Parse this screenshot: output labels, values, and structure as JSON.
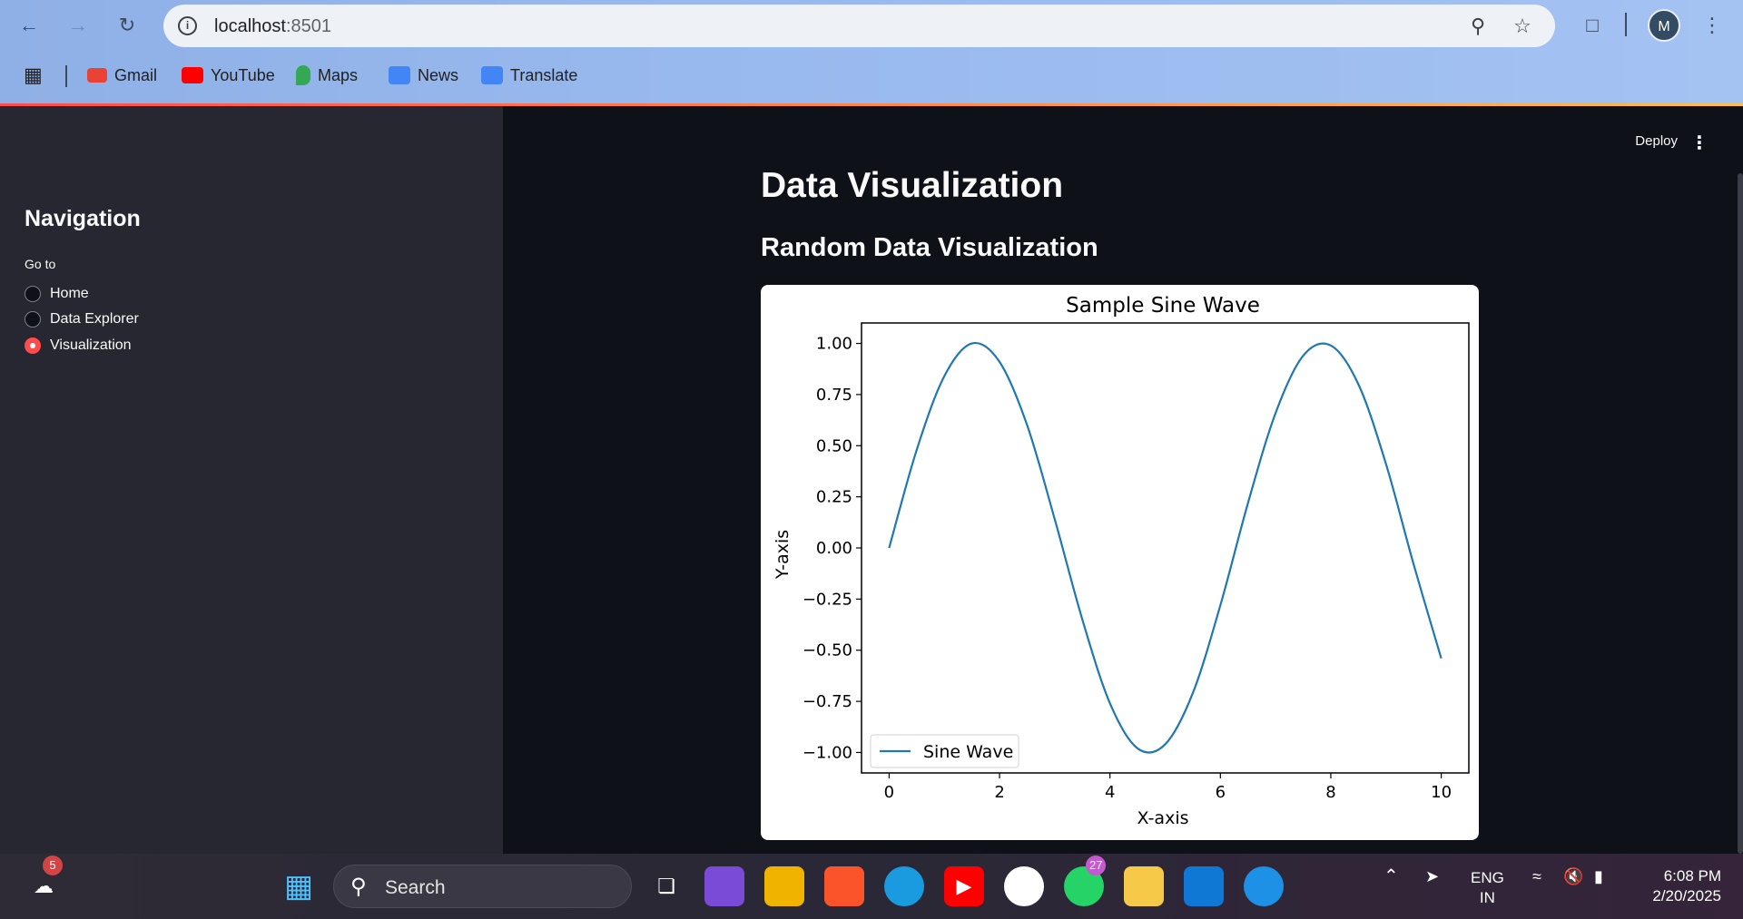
{
  "browser": {
    "url_host": "localhost",
    "url_port": ":8501",
    "profile_initial": "M",
    "bookmarks": [
      {
        "label": "Gmail",
        "color": "#ea4335"
      },
      {
        "label": "YouTube",
        "color": "#ff0000"
      },
      {
        "label": "Maps",
        "color": "#34a853"
      },
      {
        "label": "News",
        "color": "#4285f4"
      },
      {
        "label": "Translate",
        "color": "#4285f4"
      }
    ]
  },
  "sidebar": {
    "heading": "Navigation",
    "radio_label": "Go to",
    "options": [
      "Home",
      "Data Explorer",
      "Visualization"
    ],
    "selected": "Visualization"
  },
  "main": {
    "deploy_label": "Deploy",
    "title": "Data Visualization",
    "subtitle": "Random Data Visualization"
  },
  "chart_data": {
    "type": "line",
    "title": "Sample Sine Wave",
    "xlabel": "X-axis",
    "ylabel": "Y-axis",
    "xlim": [
      -0.5,
      10.5
    ],
    "ylim": [
      -1.1,
      1.1
    ],
    "xticks": [
      "0",
      "2",
      "4",
      "6",
      "8",
      "10"
    ],
    "yticks": [
      "1.00",
      "0.75",
      "0.50",
      "0.25",
      "0.00",
      "−0.25",
      "−0.50",
      "−0.75",
      "−1.00"
    ],
    "legend_position": "lower-left",
    "series": [
      {
        "name": "Sine Wave",
        "color": "#1f77b4",
        "x": [
          0,
          0.5,
          1.0,
          1.5,
          2.0,
          2.5,
          3.0,
          3.5,
          4.0,
          4.5,
          5.0,
          5.5,
          6.0,
          6.5,
          7.0,
          7.5,
          8.0,
          8.5,
          9.0,
          9.5,
          10.0
        ],
        "y": [
          0,
          0.48,
          0.84,
          1.0,
          0.91,
          0.6,
          0.14,
          -0.35,
          -0.76,
          -0.98,
          -0.96,
          -0.71,
          -0.28,
          0.22,
          0.66,
          0.94,
          0.99,
          0.8,
          0.41,
          -0.08,
          -0.54
        ]
      }
    ]
  },
  "taskbar": {
    "search_label": "Search",
    "weather_badge": "5",
    "whatsapp_badge": "27",
    "lang_line1": "ENG",
    "lang_line2": "IN",
    "time": "6:08 PM",
    "date": "2/20/2025"
  }
}
